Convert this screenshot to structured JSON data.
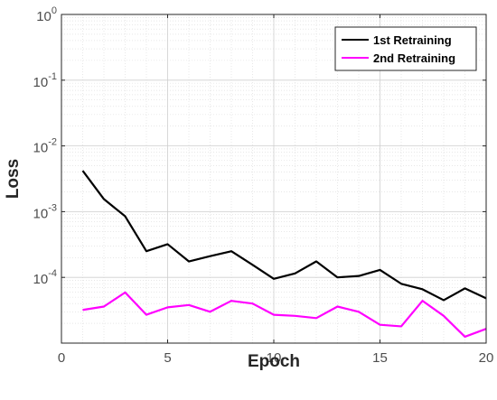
{
  "chart_data": {
    "type": "line",
    "title": "",
    "xlabel": "Epoch",
    "ylabel": "Loss",
    "xlim": [
      0,
      20
    ],
    "ylim": [
      1e-05,
      1
    ],
    "yscale": "log",
    "grid": true,
    "legend_position": "top-right",
    "x_ticks": [
      0,
      5,
      10,
      15,
      20
    ],
    "y_ticks": [
      {
        "value": 0.0001,
        "base": "10",
        "exp": "-4"
      },
      {
        "value": 0.001,
        "base": "10",
        "exp": "-3"
      },
      {
        "value": 0.01,
        "base": "10",
        "exp": "-2"
      },
      {
        "value": 0.1,
        "base": "10",
        "exp": "-1"
      },
      {
        "value": 1,
        "base": "10",
        "exp": "0"
      }
    ],
    "x": [
      1,
      2,
      3,
      4,
      5,
      6,
      7,
      8,
      9,
      10,
      11,
      12,
      13,
      14,
      15,
      16,
      17,
      18,
      19,
      20
    ],
    "series": [
      {
        "name": "1st Retraining",
        "color": "#000000",
        "values": [
          0.0042,
          0.00155,
          0.00085,
          0.00025,
          0.00032,
          0.000175,
          0.00021,
          0.00025,
          0.000155,
          9.5e-05,
          0.000115,
          0.000175,
          0.0001,
          0.000105,
          0.00013,
          8e-05,
          6.6e-05,
          4.5e-05,
          6.8e-05,
          4.8e-05
        ]
      },
      {
        "name": "2nd Retraining",
        "color": "#ff00ff",
        "values": [
          3.2e-05,
          3.6e-05,
          5.9e-05,
          2.7e-05,
          3.5e-05,
          3.8e-05,
          3e-05,
          4.4e-05,
          4e-05,
          2.7e-05,
          2.6e-05,
          2.4e-05,
          3.6e-05,
          3e-05,
          1.9e-05,
          1.8e-05,
          4.4e-05,
          2.6e-05,
          1.25e-05,
          1.65e-05
        ]
      }
    ]
  }
}
